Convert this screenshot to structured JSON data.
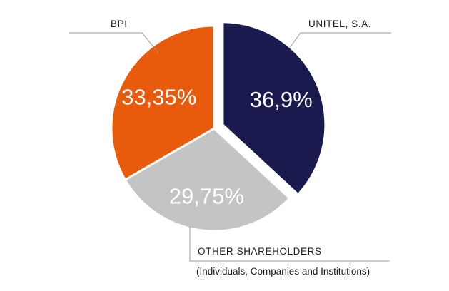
{
  "chart_data": {
    "type": "pie",
    "title": "",
    "slices": [
      {
        "name": "UNITEL, S.A.",
        "value": 36.9,
        "label": "36,9%",
        "color": "#1b1a4e",
        "exploded": true
      },
      {
        "name": "OTHER SHAREHOLDERS",
        "note": "(Individuals, Companies and Institutions)",
        "value": 29.75,
        "label": "29,75%",
        "color": "#c4c4c4",
        "exploded": false
      },
      {
        "name": "BPI",
        "value": 33.35,
        "label": "33,35%",
        "color": "#e85a0c",
        "exploded": false
      }
    ],
    "start": "top, clockwise",
    "legend": "none (callout labels with leader lines)"
  }
}
